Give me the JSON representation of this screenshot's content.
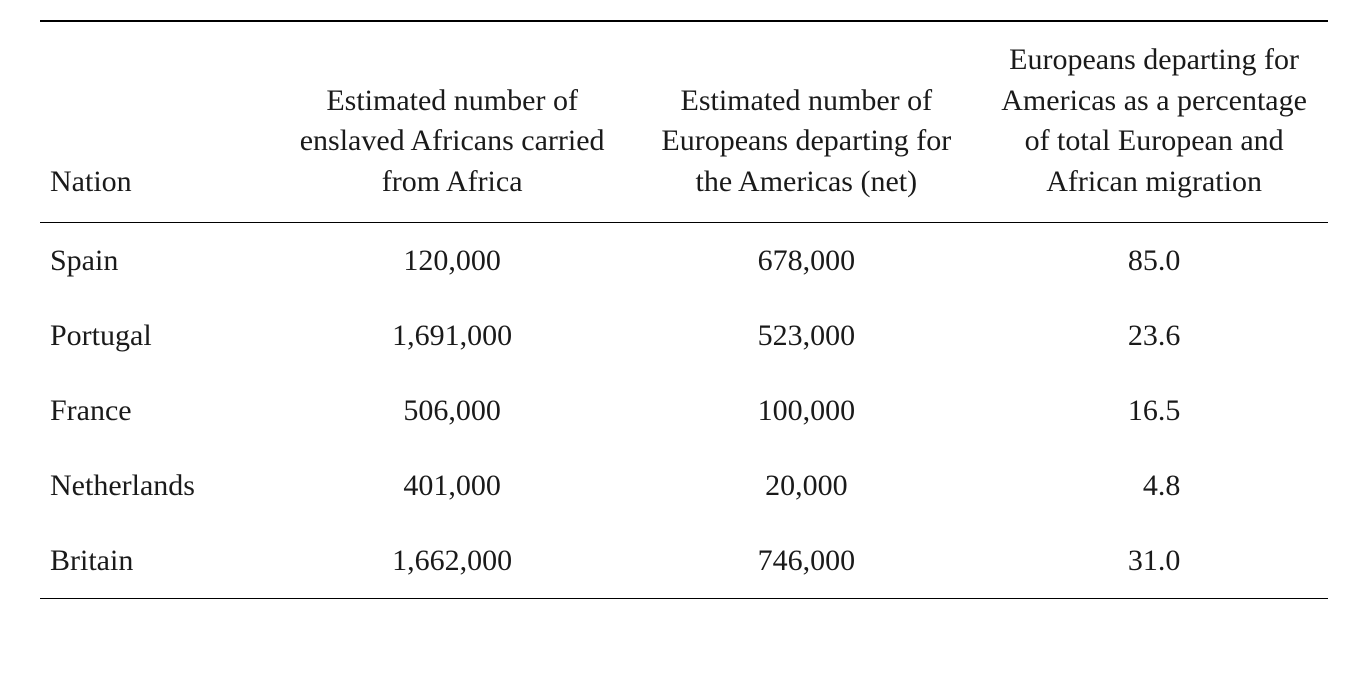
{
  "table": {
    "type": "table",
    "background_color": "#ffffff",
    "text_color": "#1a1a1a",
    "border_color": "#000000",
    "font_family": "Times New Roman serif",
    "header_fontsize_pt": 22,
    "body_fontsize_pt": 22,
    "columns": [
      {
        "key": "nation",
        "label": "Nation",
        "align": "left"
      },
      {
        "key": "africans",
        "label": "Estimated number of enslaved Africans carried from Africa",
        "align": "center"
      },
      {
        "key": "europeans",
        "label": "Estimated number of Europeans departing for the Americas (net)",
        "align": "center"
      },
      {
        "key": "pct",
        "label": "Europeans departing for Americas as a percentage of total European and African migration",
        "align": "center"
      }
    ],
    "rows": [
      {
        "nation": "Spain",
        "africans": "120,000",
        "europeans": "678,000",
        "pct": "85.0"
      },
      {
        "nation": "Portugal",
        "africans": "1,691,000",
        "europeans": "523,000",
        "pct": "23.6"
      },
      {
        "nation": "France",
        "africans": "506,000",
        "europeans": "100,000",
        "pct": "16.5"
      },
      {
        "nation": "Netherlands",
        "africans": "401,000",
        "europeans": "20,000",
        "pct": "4.8"
      },
      {
        "nation": "Britain",
        "africans": "1,662,000",
        "europeans": "746,000",
        "pct": "31.0"
      }
    ]
  }
}
